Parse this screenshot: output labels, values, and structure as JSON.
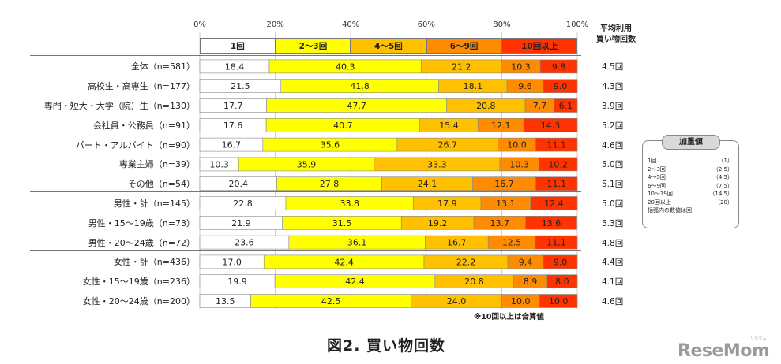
{
  "chart_data": {
    "type": "bar",
    "stacked": true,
    "orientation": "horizontal",
    "title": "図2. 買い物回数",
    "x_ticks": [
      "0%",
      "20%",
      "40%",
      "60%",
      "80%",
      "100%"
    ],
    "xlim": [
      0,
      100
    ],
    "average_column_title": [
      "平均利用",
      "買い物回数"
    ],
    "series": [
      {
        "name": "1回",
        "color": "#ffffff"
      },
      {
        "name": "2～3回",
        "color": "#ffff00"
      },
      {
        "name": "4～5回",
        "color": "#ffc000"
      },
      {
        "name": "6～9回",
        "color": "#ff8c00"
      },
      {
        "name": "10回以上",
        "color": "#ff3300"
      }
    ],
    "rows": [
      {
        "label": "全体（n=581）",
        "values": [
          18.4,
          40.3,
          21.2,
          10.3,
          9.8
        ],
        "avg": "4.5回"
      },
      {
        "label": "高校生・高専生（n=177）",
        "values": [
          21.5,
          41.8,
          18.1,
          9.6,
          9.0
        ],
        "avg": "4.3回"
      },
      {
        "label": "専門・短大・大学（院）生（n=130）",
        "values": [
          17.7,
          47.7,
          20.8,
          7.7,
          6.1
        ],
        "avg": "3.9回"
      },
      {
        "label": "会社員・公務員（n=91）",
        "values": [
          17.6,
          40.7,
          15.4,
          12.1,
          14.3
        ],
        "avg": "5.2回"
      },
      {
        "label": "パート・アルバイト（n=90）",
        "values": [
          16.7,
          35.6,
          26.7,
          10.0,
          11.1
        ],
        "avg": "4.6回"
      },
      {
        "label": "専業主婦（n=39）",
        "values": [
          10.3,
          35.9,
          33.3,
          10.3,
          10.2
        ],
        "avg": "5.0回"
      },
      {
        "label": "その他（n=54）",
        "values": [
          20.4,
          27.8,
          24.1,
          16.7,
          11.1
        ],
        "avg": "5.1回"
      },
      {
        "label": "男性・計（n=145）",
        "values": [
          22.8,
          33.8,
          17.9,
          13.1,
          12.4
        ],
        "avg": "5.0回"
      },
      {
        "label": "男性・15～19歳（n=73）",
        "values": [
          21.9,
          31.5,
          19.2,
          13.7,
          13.6
        ],
        "avg": "5.3回"
      },
      {
        "label": "男性・20～24歳（n=72）",
        "values": [
          23.6,
          36.1,
          16.7,
          12.5,
          11.1
        ],
        "avg": "4.8回"
      },
      {
        "label": "女性・計（n=436）",
        "values": [
          17.0,
          42.4,
          22.2,
          9.4,
          9.0
        ],
        "avg": "4.4回"
      },
      {
        "label": "女性・15～19歳（n=236）",
        "values": [
          19.9,
          42.4,
          20.8,
          8.9,
          8.0
        ],
        "avg": "4.1回"
      },
      {
        "label": "女性・20～24歳（n=200）",
        "values": [
          13.5,
          42.5,
          24.0,
          10.0,
          10.0
        ],
        "avg": "4.6回"
      }
    ],
    "group_separators_after_rows": [
      6,
      9
    ],
    "weights_box": {
      "title": "加重値",
      "items": [
        {
          "label": "1回",
          "value": "（1）"
        },
        {
          "label": "2～3回",
          "value": "（2.5）"
        },
        {
          "label": "4～5回",
          "value": "（4.5）"
        },
        {
          "label": "6～9回",
          "value": "（7.5）"
        },
        {
          "label": "10～19回",
          "value": "（14.5）"
        },
        {
          "label": "20回以上",
          "value": "（20）"
        }
      ],
      "footnote": "括弧内の数値は回"
    },
    "note": "※10回以上は合算値"
  },
  "logo": {
    "text": "ReseMom",
    "sub": "リセマム"
  }
}
